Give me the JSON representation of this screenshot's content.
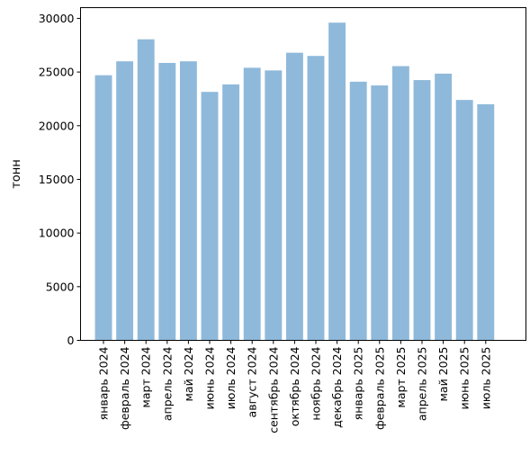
{
  "chart_data": {
    "type": "bar",
    "title": "",
    "xlabel": "",
    "ylabel": "тонн",
    "ylim": [
      0,
      31000
    ],
    "yticks": [
      0,
      5000,
      10000,
      15000,
      20000,
      25000,
      30000
    ],
    "ytick_labels": [
      "0",
      "5000",
      "10000",
      "15000",
      "20000",
      "25000",
      "30000"
    ],
    "grid": false,
    "bar_color": "#8fb9da",
    "categories": [
      "январь 2024",
      "февраль 2024",
      "март 2024",
      "апрель 2024",
      "май 2024",
      "июнь 2024",
      "июль 2024",
      "август 2024",
      "сентябрь 2024",
      "октябрь 2024",
      "ноябрь 2024",
      "декабрь 2024",
      "январь 2025",
      "февраль 2025",
      "март 2025",
      "апрель 2025",
      "май 2025",
      "июнь 2025",
      "июль 2025"
    ],
    "values": [
      24700,
      26000,
      28050,
      25850,
      26000,
      23150,
      23850,
      25400,
      25150,
      26800,
      26500,
      29600,
      24100,
      23750,
      25550,
      24250,
      24850,
      22400,
      22000
    ]
  }
}
